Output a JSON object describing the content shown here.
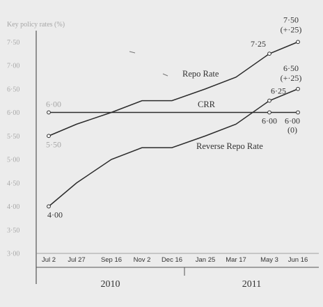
{
  "chart_data": {
    "type": "line",
    "title": "Key policy rates (%)",
    "x_categories": [
      "Jul 2",
      "Jul 27",
      "Sep 16",
      "Nov 2",
      "Dec 16",
      "Jan 25",
      "Mar 17",
      "May 3",
      "Jun 16"
    ],
    "year_labels": [
      {
        "label": "2010",
        "from": "Jul 2",
        "to": "Dec 16"
      },
      {
        "label": "2011",
        "from": "Jan 25",
        "to": "Jun 16"
      }
    ],
    "y_ticks": [
      "3·00",
      "3·50",
      "4·00",
      "4·50",
      "5·00",
      "5·50",
      "6·00",
      "6·50",
      "7·00",
      "7·50"
    ],
    "ylim": [
      3.0,
      7.8
    ],
    "grid": false,
    "series": [
      {
        "name": "Repo Rate",
        "values": [
          5.5,
          5.75,
          6.0,
          6.25,
          6.25,
          6.5,
          6.75,
          7.25,
          7.5
        ],
        "annotations": [
          {
            "category": "Jul 2",
            "text": "5·50"
          },
          {
            "category": "May 3",
            "text": "7·25"
          },
          {
            "category": "Jun 16",
            "text": "7·50"
          },
          {
            "category": "Jun 16",
            "text": "(+·25)"
          }
        ]
      },
      {
        "name": "CRR",
        "values": [
          6.0,
          6.0,
          6.0,
          6.0,
          6.0,
          6.0,
          6.0,
          6.0,
          6.0
        ],
        "annotations": [
          {
            "category": "Jul 2",
            "text": "6·00"
          },
          {
            "category": "May 3",
            "text": "6·00"
          },
          {
            "category": "Jun 16",
            "text": "6·00"
          },
          {
            "category": "Jun 16",
            "text": "(0)"
          }
        ]
      },
      {
        "name": "Reverse Repo Rate",
        "values": [
          4.0,
          4.5,
          5.0,
          5.25,
          5.25,
          5.5,
          5.75,
          6.25,
          6.5
        ],
        "annotations": [
          {
            "category": "Jul 2",
            "text": "4·00"
          },
          {
            "category": "May 3",
            "text": "6·25"
          },
          {
            "category": "Jun 16",
            "text": "6·50"
          },
          {
            "category": "Jun 16",
            "text": "(+·25)"
          }
        ]
      }
    ]
  }
}
